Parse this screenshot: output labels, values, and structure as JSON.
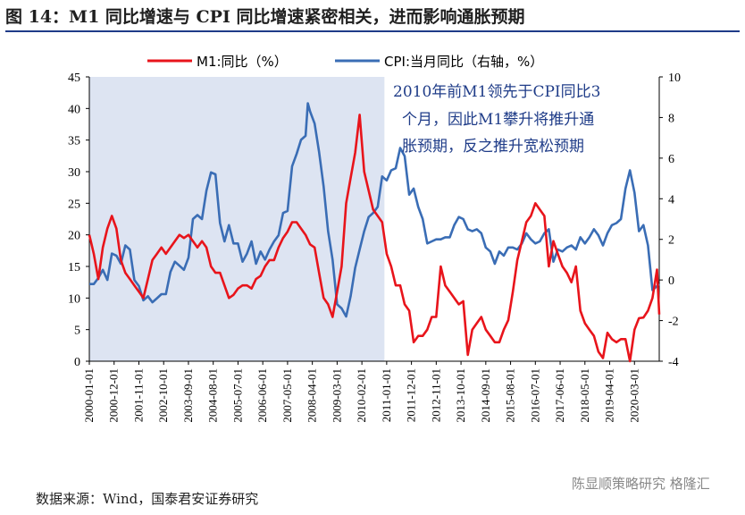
{
  "page": {
    "title": "图 14：M1 同比增速与 CPI 同比增速紧密相关，进而影响通胀预期",
    "source": "数据来源：Wind，国泰君安证券研究",
    "watermark": "陈显顺策略研究  格隆汇"
  },
  "chart_data": {
    "type": "line",
    "x_tick_labels": [
      "2000-01-01",
      "2000-12-01",
      "2001-11-01",
      "2002-10-01",
      "2003-09-01",
      "2004-08-01",
      "2005-07-01",
      "2006-06-01",
      "2007-05-01",
      "2008-04-01",
      "2009-03-01",
      "2010-02-01",
      "2011-01-01",
      "2011-12-01",
      "2012-11-01",
      "2013-10-01",
      "2014-09-01",
      "2015-08-01",
      "2016-07-01",
      "2017-06-01",
      "2018-05-01",
      "2019-04-01",
      "2020-03-01"
    ],
    "y_left": {
      "min": 0,
      "max": 45,
      "ticks": [
        0,
        5,
        10,
        15,
        20,
        25,
        30,
        35,
        40,
        45
      ]
    },
    "y_right": {
      "min": -4,
      "max": 10,
      "ticks": [
        -4,
        -2,
        0,
        2,
        4,
        6,
        8,
        10
      ]
    },
    "shaded_region": {
      "from": "2000-01-01",
      "to": "2010-12-01",
      "color": "#dde4f2"
    },
    "annotation": [
      "2010年前M1领先于CPI同比3",
      "个月，因此M1攀升将推升通",
      "胀预期，反之推升宽松预期"
    ],
    "series": [
      {
        "name": "M1:同比（%）",
        "axis": "left",
        "color": "#e8141b",
        "points": [
          [
            "2000-01",
            20
          ],
          [
            "2000-03",
            17
          ],
          [
            "2000-05",
            13
          ],
          [
            "2000-07",
            18
          ],
          [
            "2000-09",
            21
          ],
          [
            "2000-11",
            23
          ],
          [
            "2001-01",
            21
          ],
          [
            "2001-03",
            16
          ],
          [
            "2001-05",
            14
          ],
          [
            "2001-07",
            13
          ],
          [
            "2001-09",
            12
          ],
          [
            "2001-11",
            11
          ],
          [
            "2002-01",
            10
          ],
          [
            "2002-03",
            13
          ],
          [
            "2002-05",
            16
          ],
          [
            "2002-07",
            17
          ],
          [
            "2002-09",
            18
          ],
          [
            "2002-11",
            17
          ],
          [
            "2003-01",
            18
          ],
          [
            "2003-03",
            19
          ],
          [
            "2003-05",
            20
          ],
          [
            "2003-07",
            19.5
          ],
          [
            "2003-09",
            20
          ],
          [
            "2003-11",
            19
          ],
          [
            "2004-01",
            18
          ],
          [
            "2004-03",
            19
          ],
          [
            "2004-05",
            18
          ],
          [
            "2004-07",
            15
          ],
          [
            "2004-09",
            14
          ],
          [
            "2004-11",
            14
          ],
          [
            "2005-01",
            12
          ],
          [
            "2005-03",
            10
          ],
          [
            "2005-05",
            10.5
          ],
          [
            "2005-07",
            11.5
          ],
          [
            "2005-09",
            12
          ],
          [
            "2005-11",
            12
          ],
          [
            "2006-01",
            11.5
          ],
          [
            "2006-03",
            13
          ],
          [
            "2006-05",
            13.5
          ],
          [
            "2006-07",
            15
          ],
          [
            "2006-09",
            16
          ],
          [
            "2006-11",
            16
          ],
          [
            "2007-01",
            18
          ],
          [
            "2007-03",
            19.5
          ],
          [
            "2007-05",
            20.5
          ],
          [
            "2007-07",
            22
          ],
          [
            "2007-09",
            22
          ],
          [
            "2007-11",
            21
          ],
          [
            "2008-01",
            20
          ],
          [
            "2008-03",
            18.5
          ],
          [
            "2008-05",
            18
          ],
          [
            "2008-07",
            14
          ],
          [
            "2008-09",
            10
          ],
          [
            "2008-11",
            9
          ],
          [
            "2009-01",
            7
          ],
          [
            "2009-03",
            11
          ],
          [
            "2009-05",
            15
          ],
          [
            "2009-07",
            25
          ],
          [
            "2009-09",
            29
          ],
          [
            "2009-11",
            33
          ],
          [
            "2010-01",
            39
          ],
          [
            "2010-03",
            30
          ],
          [
            "2010-05",
            27
          ],
          [
            "2010-07",
            24
          ],
          [
            "2010-09",
            23
          ],
          [
            "2010-11",
            22
          ],
          [
            "2011-01",
            17
          ],
          [
            "2011-03",
            15
          ],
          [
            "2011-05",
            12
          ],
          [
            "2011-07",
            12
          ],
          [
            "2011-09",
            9
          ],
          [
            "2011-11",
            8
          ],
          [
            "2012-01",
            3
          ],
          [
            "2012-03",
            4
          ],
          [
            "2012-05",
            4
          ],
          [
            "2012-07",
            5
          ],
          [
            "2012-09",
            7
          ],
          [
            "2012-11",
            7
          ],
          [
            "2013-01",
            15
          ],
          [
            "2013-03",
            12
          ],
          [
            "2013-05",
            11
          ],
          [
            "2013-07",
            10
          ],
          [
            "2013-09",
            9
          ],
          [
            "2013-11",
            9.5
          ],
          [
            "2014-01",
            1
          ],
          [
            "2014-03",
            5
          ],
          [
            "2014-05",
            6
          ],
          [
            "2014-07",
            7
          ],
          [
            "2014-09",
            5
          ],
          [
            "2014-11",
            4
          ],
          [
            "2015-01",
            3
          ],
          [
            "2015-03",
            3
          ],
          [
            "2015-05",
            5
          ],
          [
            "2015-07",
            6.5
          ],
          [
            "2015-09",
            11
          ],
          [
            "2015-11",
            16
          ],
          [
            "2016-01",
            19
          ],
          [
            "2016-03",
            22
          ],
          [
            "2016-05",
            23
          ],
          [
            "2016-07",
            25
          ],
          [
            "2016-09",
            24
          ],
          [
            "2016-11",
            23
          ],
          [
            "2017-01",
            15
          ],
          [
            "2017-03",
            19
          ],
          [
            "2017-05",
            17
          ],
          [
            "2017-07",
            15
          ],
          [
            "2017-09",
            14
          ],
          [
            "2017-11",
            12.5
          ],
          [
            "2018-01",
            15
          ],
          [
            "2018-03",
            8
          ],
          [
            "2018-05",
            6
          ],
          [
            "2018-07",
            5
          ],
          [
            "2018-09",
            4
          ],
          [
            "2018-11",
            1.5
          ],
          [
            "2019-01",
            0.5
          ],
          [
            "2019-03",
            4.5
          ],
          [
            "2019-05",
            3.5
          ],
          [
            "2019-07",
            3
          ],
          [
            "2019-09",
            3.5
          ],
          [
            "2019-11",
            3.5
          ],
          [
            "2020-01",
            0
          ],
          [
            "2020-03",
            5
          ],
          [
            "2020-05",
            6.8
          ],
          [
            "2020-07",
            6.9
          ],
          [
            "2020-09",
            8
          ],
          [
            "2020-11",
            10
          ],
          [
            "2021-01",
            14.5
          ],
          [
            "2021-02",
            7.4
          ]
        ]
      },
      {
        "name": "CPI:当月同比（右轴，%）",
        "axis": "right",
        "color": "#3a6db5",
        "points": [
          [
            "2000-01",
            -0.2
          ],
          [
            "2000-03",
            -0.2
          ],
          [
            "2000-05",
            0.1
          ],
          [
            "2000-07",
            0.5
          ],
          [
            "2000-09",
            0.0
          ],
          [
            "2000-11",
            1.3
          ],
          [
            "2001-01",
            1.2
          ],
          [
            "2001-03",
            0.8
          ],
          [
            "2001-05",
            1.7
          ],
          [
            "2001-07",
            1.5
          ],
          [
            "2001-09",
            0.0
          ],
          [
            "2001-11",
            -0.3
          ],
          [
            "2002-01",
            -1.0
          ],
          [
            "2002-03",
            -0.8
          ],
          [
            "2002-05",
            -1.1
          ],
          [
            "2002-07",
            -0.9
          ],
          [
            "2002-09",
            -0.7
          ],
          [
            "2002-11",
            -0.7
          ],
          [
            "2003-01",
            0.4
          ],
          [
            "2003-03",
            0.9
          ],
          [
            "2003-05",
            0.7
          ],
          [
            "2003-07",
            0.5
          ],
          [
            "2003-09",
            1.1
          ],
          [
            "2003-11",
            3.0
          ],
          [
            "2004-01",
            3.2
          ],
          [
            "2004-03",
            3.0
          ],
          [
            "2004-05",
            4.4
          ],
          [
            "2004-07",
            5.3
          ],
          [
            "2004-09",
            5.2
          ],
          [
            "2004-11",
            2.8
          ],
          [
            "2005-01",
            1.9
          ],
          [
            "2005-03",
            2.7
          ],
          [
            "2005-05",
            1.8
          ],
          [
            "2005-07",
            1.8
          ],
          [
            "2005-09",
            0.9
          ],
          [
            "2005-11",
            1.3
          ],
          [
            "2006-01",
            1.9
          ],
          [
            "2006-03",
            0.8
          ],
          [
            "2006-05",
            1.4
          ],
          [
            "2006-07",
            1.0
          ],
          [
            "2006-09",
            1.5
          ],
          [
            "2006-11",
            1.9
          ],
          [
            "2007-01",
            2.2
          ],
          [
            "2007-03",
            3.3
          ],
          [
            "2007-05",
            3.4
          ],
          [
            "2007-07",
            5.6
          ],
          [
            "2007-09",
            6.2
          ],
          [
            "2007-11",
            6.9
          ],
          [
            "2008-01",
            7.1
          ],
          [
            "2008-02",
            8.7
          ],
          [
            "2008-03",
            8.3
          ],
          [
            "2008-05",
            7.7
          ],
          [
            "2008-07",
            6.3
          ],
          [
            "2008-09",
            4.6
          ],
          [
            "2008-11",
            2.4
          ],
          [
            "2009-01",
            1.0
          ],
          [
            "2009-03",
            -1.2
          ],
          [
            "2009-05",
            -1.4
          ],
          [
            "2009-07",
            -1.8
          ],
          [
            "2009-09",
            -0.8
          ],
          [
            "2009-11",
            0.6
          ],
          [
            "2010-01",
            1.5
          ],
          [
            "2010-03",
            2.4
          ],
          [
            "2010-05",
            3.1
          ],
          [
            "2010-07",
            3.3
          ],
          [
            "2010-09",
            3.6
          ],
          [
            "2010-11",
            5.1
          ],
          [
            "2011-01",
            4.9
          ],
          [
            "2011-03",
            5.4
          ],
          [
            "2011-05",
            5.5
          ],
          [
            "2011-07",
            6.5
          ],
          [
            "2011-09",
            6.1
          ],
          [
            "2011-11",
            4.2
          ],
          [
            "2012-01",
            4.5
          ],
          [
            "2012-03",
            3.6
          ],
          [
            "2012-05",
            3.0
          ],
          [
            "2012-07",
            1.8
          ],
          [
            "2012-09",
            1.9
          ],
          [
            "2012-11",
            2.0
          ],
          [
            "2013-01",
            2.0
          ],
          [
            "2013-03",
            2.1
          ],
          [
            "2013-05",
            2.1
          ],
          [
            "2013-07",
            2.7
          ],
          [
            "2013-09",
            3.1
          ],
          [
            "2013-11",
            3.0
          ],
          [
            "2014-01",
            2.5
          ],
          [
            "2014-03",
            2.4
          ],
          [
            "2014-05",
            2.5
          ],
          [
            "2014-07",
            2.3
          ],
          [
            "2014-09",
            1.6
          ],
          [
            "2014-11",
            1.4
          ],
          [
            "2015-01",
            0.8
          ],
          [
            "2015-03",
            1.4
          ],
          [
            "2015-05",
            1.2
          ],
          [
            "2015-07",
            1.6
          ],
          [
            "2015-09",
            1.6
          ],
          [
            "2015-11",
            1.5
          ],
          [
            "2016-01",
            1.8
          ],
          [
            "2016-03",
            2.3
          ],
          [
            "2016-05",
            2.0
          ],
          [
            "2016-07",
            1.8
          ],
          [
            "2016-09",
            1.9
          ],
          [
            "2016-11",
            2.3
          ],
          [
            "2017-01",
            2.5
          ],
          [
            "2017-03",
            0.9
          ],
          [
            "2017-05",
            1.5
          ],
          [
            "2017-07",
            1.4
          ],
          [
            "2017-09",
            1.6
          ],
          [
            "2017-11",
            1.7
          ],
          [
            "2018-01",
            1.5
          ],
          [
            "2018-03",
            2.1
          ],
          [
            "2018-05",
            1.8
          ],
          [
            "2018-07",
            2.1
          ],
          [
            "2018-09",
            2.5
          ],
          [
            "2018-11",
            2.2
          ],
          [
            "2019-01",
            1.7
          ],
          [
            "2019-03",
            2.3
          ],
          [
            "2019-05",
            2.7
          ],
          [
            "2019-07",
            2.8
          ],
          [
            "2019-09",
            3.0
          ],
          [
            "2019-11",
            4.5
          ],
          [
            "2020-01",
            5.4
          ],
          [
            "2020-03",
            4.3
          ],
          [
            "2020-05",
            2.4
          ],
          [
            "2020-07",
            2.7
          ],
          [
            "2020-09",
            1.7
          ],
          [
            "2020-11",
            -0.5
          ],
          [
            "2021-01",
            -0.3
          ],
          [
            "2021-02",
            -0.2
          ]
        ]
      }
    ]
  }
}
